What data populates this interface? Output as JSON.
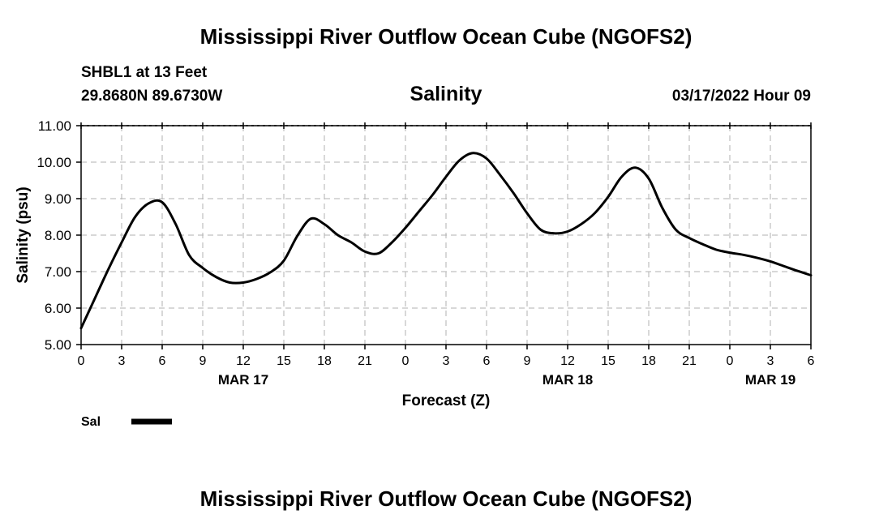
{
  "page": {
    "title": "Mississippi River Outflow Ocean Cube (NGOFS2)",
    "footer_title": "Mississippi River Outflow Ocean Cube (NGOFS2)",
    "station": "SHBL1 at 13 Feet",
    "coords": "29.8680N  89.6730W",
    "datetime": "03/17/2022 Hour 09"
  },
  "chart_data": {
    "type": "line",
    "title": "Salinity",
    "xlabel": "Forecast (Z)",
    "ylabel": "Salinity (psu)",
    "ylim": [
      5,
      11
    ],
    "xlim": [
      0,
      54
    ],
    "grid": true,
    "y_ticks": [
      "5.00",
      "6.00",
      "7.00",
      "8.00",
      "9.00",
      "10.00",
      "11.00"
    ],
    "x_ticks": [
      "0",
      "3",
      "6",
      "9",
      "12",
      "15",
      "18",
      "21",
      "0",
      "3",
      "6",
      "9",
      "12",
      "15",
      "18",
      "21",
      "0",
      "3",
      "6"
    ],
    "day_labels": [
      {
        "label": "MAR 17",
        "hour": 12
      },
      {
        "label": "MAR 18",
        "hour": 36
      },
      {
        "label": "MAR 19",
        "hour": 51
      }
    ],
    "legend": {
      "label": "Sal",
      "position": "bottom-left"
    },
    "series": [
      {
        "name": "Sal",
        "color": "#000000",
        "x": [
          0,
          1,
          2,
          3,
          4,
          5,
          6,
          7,
          8,
          9,
          10,
          11,
          12,
          13,
          14,
          15,
          16,
          17,
          18,
          19,
          20,
          21,
          22,
          23,
          24,
          25,
          26,
          27,
          28,
          29,
          30,
          31,
          32,
          33,
          34,
          35,
          36,
          37,
          38,
          39,
          40,
          41,
          42,
          43,
          44,
          45,
          46,
          47,
          48,
          49,
          50,
          51,
          52,
          53,
          54
        ],
        "values": [
          5.45,
          6.25,
          7.05,
          7.8,
          8.5,
          8.87,
          8.9,
          8.3,
          7.45,
          7.1,
          6.85,
          6.7,
          6.7,
          6.8,
          6.98,
          7.3,
          7.98,
          8.45,
          8.3,
          8.0,
          7.8,
          7.55,
          7.5,
          7.8,
          8.2,
          8.65,
          9.1,
          9.6,
          10.05,
          10.25,
          10.1,
          9.65,
          9.15,
          8.6,
          8.15,
          8.05,
          8.1,
          8.3,
          8.6,
          9.05,
          9.6,
          9.85,
          9.55,
          8.75,
          8.15,
          7.92,
          7.75,
          7.6,
          7.52,
          7.46,
          7.38,
          7.28,
          7.15,
          7.02,
          6.9
        ]
      }
    ]
  }
}
